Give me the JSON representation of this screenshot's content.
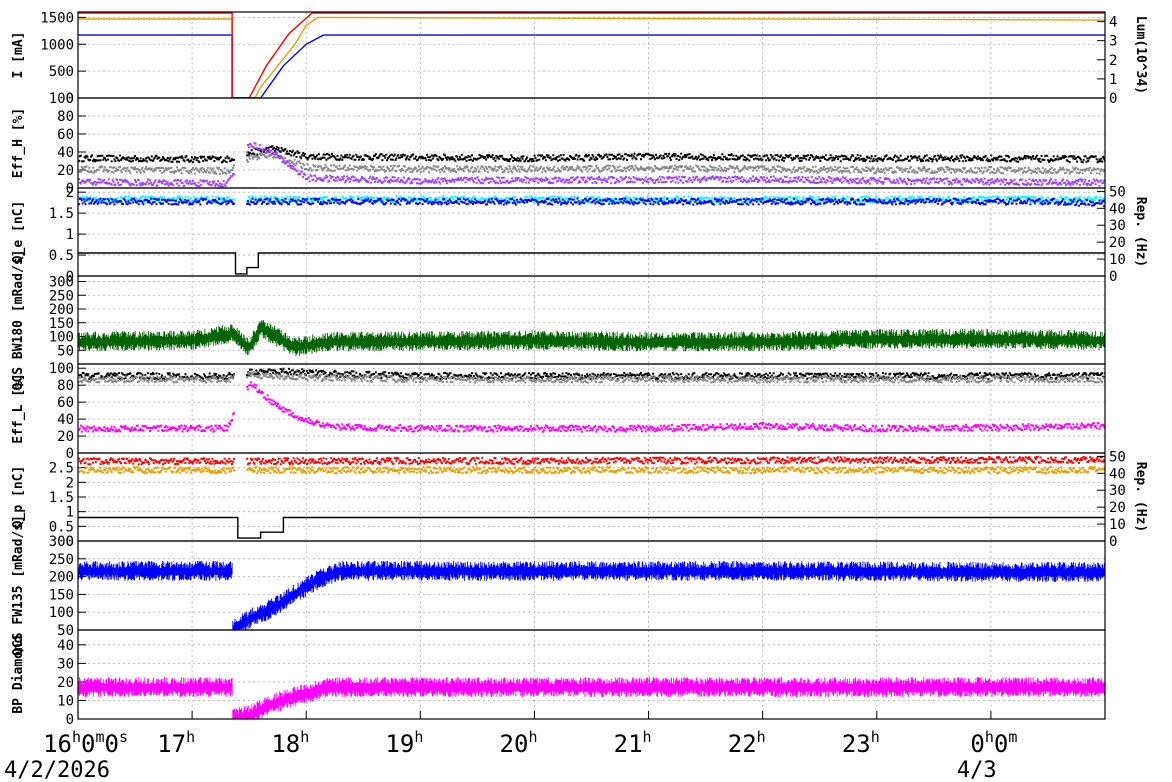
{
  "chart_data": {
    "type": "line",
    "x_range_hours": [
      16.0,
      25.0
    ],
    "x_ticks": [
      {
        "t": 16,
        "main": "16",
        "sup1": "h",
        "mid": "0",
        "sup2": "m",
        "tail": "0",
        "sup3": "s"
      },
      {
        "t": 17,
        "main": "17",
        "sup1": "h"
      },
      {
        "t": 18,
        "main": "18",
        "sup1": "h"
      },
      {
        "t": 19,
        "main": "19",
        "sup1": "h"
      },
      {
        "t": 20,
        "main": "20",
        "sup1": "h"
      },
      {
        "t": 21,
        "main": "21",
        "sup1": "h"
      },
      {
        "t": 22,
        "main": "22",
        "sup1": "h"
      },
      {
        "t": 23,
        "main": "23",
        "sup1": "h"
      },
      {
        "t": 24,
        "main": "0",
        "sup1": "h",
        "mid": "0",
        "sup2": "m"
      }
    ],
    "dates": [
      {
        "t": 16,
        "text": "4/2/2026"
      },
      {
        "t": 24,
        "text": "4/3"
      }
    ],
    "grid": true,
    "panels": [
      {
        "id": "current",
        "ylabel": "I [mA]",
        "ylim": [
          0,
          1600
        ],
        "yticks": [
          0,
          500,
          1000,
          1500
        ],
        "right_label": "Lum(10^34)",
        "right_ylim": [
          0,
          4.5
        ],
        "right_ticks": [
          0,
          1,
          2,
          3,
          4
        ],
        "series": [
          {
            "color": "#e8a000",
            "kind": "line",
            "points": [
              [
                16.0,
                1470
              ],
              [
                17.35,
                1470
              ],
              [
                17.35,
                0
              ],
              [
                17.55,
                0
              ],
              [
                17.6,
                200
              ],
              [
                17.75,
                600
              ],
              [
                17.9,
                1000
              ],
              [
                18.0,
                1350
              ],
              [
                18.1,
                1500
              ],
              [
                25.0,
                1450
              ]
            ]
          },
          {
            "color": "#0000ff",
            "kind": "line",
            "points": [
              [
                16.0,
                1170
              ],
              [
                17.35,
                1170
              ],
              [
                17.35,
                0
              ],
              [
                17.6,
                0
              ],
              [
                17.8,
                600
              ],
              [
                18.0,
                1000
              ],
              [
                18.15,
                1170
              ],
              [
                25.0,
                1170
              ]
            ]
          },
          {
            "color": "#ff0000",
            "kind": "line",
            "points": [
              [
                16.0,
                1580
              ],
              [
                17.35,
                1580
              ],
              [
                17.35,
                0
              ],
              [
                17.5,
                0
              ],
              [
                17.65,
                600
              ],
              [
                17.85,
                1200
              ],
              [
                18.05,
                1580
              ],
              [
                25.0,
                1580
              ]
            ]
          }
        ]
      },
      {
        "id": "effh",
        "ylabel": "Eff_H [%]",
        "ylim": [
          0,
          100
        ],
        "yticks": [
          0,
          20,
          40,
          60,
          80,
          100
        ],
        "series": [
          {
            "color": "#000000",
            "kind": "scatter",
            "points": [
              [
                16.0,
                34
              ],
              [
                17.3,
                33
              ],
              [
                17.5,
                40
              ],
              [
                17.7,
                45
              ],
              [
                18.0,
                36
              ],
              [
                19.0,
                35
              ],
              [
                20.0,
                34
              ],
              [
                21.0,
                36
              ],
              [
                22.0,
                35
              ],
              [
                23.0,
                34
              ],
              [
                24.0,
                34
              ],
              [
                25.0,
                33
              ]
            ]
          },
          {
            "color": "#888888",
            "kind": "scatter",
            "points": [
              [
                16.0,
                22
              ],
              [
                17.3,
                20
              ],
              [
                17.5,
                35
              ],
              [
                17.7,
                38
              ],
              [
                18.0,
                24
              ],
              [
                19.0,
                22
              ],
              [
                20.0,
                22
              ],
              [
                21.0,
                23
              ],
              [
                22.0,
                22
              ],
              [
                23.0,
                21
              ],
              [
                24.0,
                21
              ],
              [
                25.0,
                20
              ]
            ]
          },
          {
            "color": "#a040ff",
            "kind": "scatter",
            "points": [
              [
                16.0,
                8
              ],
              [
                17.3,
                6
              ],
              [
                17.5,
                50
              ],
              [
                17.7,
                40
              ],
              [
                18.0,
                12
              ],
              [
                19.0,
                9
              ],
              [
                20.0,
                10
              ],
              [
                21.0,
                10
              ],
              [
                22.0,
                11
              ],
              [
                23.0,
                9
              ],
              [
                24.0,
                8
              ],
              [
                25.0,
                7
              ]
            ]
          }
        ]
      },
      {
        "id": "qe",
        "ylabel": "Q_e [nC]",
        "ylim": [
          0,
          2.1
        ],
        "yticks": [
          0,
          0.5,
          1,
          1.5,
          2
        ],
        "right_label": "Rep. (Hz)",
        "right_ylim": [
          0,
          52
        ],
        "right_ticks": [
          0,
          10,
          20,
          30,
          40,
          50
        ],
        "series": [
          {
            "color": "#00ffff",
            "kind": "scatter",
            "points": [
              [
                16.0,
                1.85
              ],
              [
                17.3,
                1.85
              ],
              [
                17.45,
                1.85
              ],
              [
                25.0,
                1.85
              ]
            ]
          },
          {
            "color": "#0000ff",
            "kind": "scatter",
            "points": [
              [
                16.0,
                1.8
              ],
              [
                17.3,
                1.8
              ],
              [
                17.45,
                1.8
              ],
              [
                24.5,
                1.8
              ],
              [
                25.0,
                1.75
              ]
            ]
          },
          {
            "color": "#000000",
            "kind": "line",
            "points": [
              [
                16.0,
                0.55
              ],
              [
                17.38,
                0.55
              ],
              [
                17.38,
                0.05
              ],
              [
                17.48,
                0.05
              ],
              [
                17.48,
                0.2
              ],
              [
                17.58,
                0.2
              ],
              [
                17.58,
                0.55
              ],
              [
                25.0,
                0.55
              ]
            ]
          }
        ]
      },
      {
        "id": "bw180",
        "ylabel": "QCS BW180 [mRad/s]",
        "ylim": [
          0,
          320
        ],
        "yticks": [
          50,
          100,
          150,
          200,
          250,
          300
        ],
        "series": [
          {
            "color": "#006400",
            "kind": "noise",
            "points": [
              [
                16.0,
                80
              ],
              [
                17.0,
                85
              ],
              [
                17.35,
                110
              ],
              [
                17.5,
                60
              ],
              [
                17.6,
                130
              ],
              [
                17.9,
                60
              ],
              [
                18.2,
                80
              ],
              [
                20.0,
                85
              ],
              [
                21.0,
                80
              ],
              [
                22.0,
                80
              ],
              [
                23.0,
                90
              ],
              [
                24.0,
                90
              ],
              [
                25.0,
                85
              ]
            ]
          }
        ]
      },
      {
        "id": "effl",
        "ylabel": "Eff_L [%]",
        "ylim": [
          0,
          105
        ],
        "yticks": [
          0,
          20,
          40,
          60,
          80,
          100
        ],
        "series": [
          {
            "color": "#000000",
            "kind": "scatter",
            "points": [
              [
                16.0,
                92
              ],
              [
                17.3,
                92
              ],
              [
                17.5,
                96
              ],
              [
                17.8,
                98
              ],
              [
                18.1,
                95
              ],
              [
                19.0,
                92
              ],
              [
                21.0,
                92
              ],
              [
                23.0,
                92
              ],
              [
                25.0,
                92
              ]
            ]
          },
          {
            "color": "#888888",
            "kind": "scatter",
            "points": [
              [
                16.0,
                88
              ],
              [
                17.3,
                88
              ],
              [
                17.5,
                93
              ],
              [
                18.0,
                90
              ],
              [
                19.0,
                88
              ],
              [
                21.0,
                88
              ],
              [
                23.0,
                88
              ],
              [
                25.0,
                88
              ]
            ]
          },
          {
            "color": "#ff00ff",
            "kind": "scatter",
            "points": [
              [
                16.0,
                30
              ],
              [
                17.3,
                30
              ],
              [
                17.5,
                85
              ],
              [
                17.7,
                60
              ],
              [
                17.9,
                45
              ],
              [
                18.2,
                32
              ],
              [
                19.0,
                30
              ],
              [
                20.0,
                30
              ],
              [
                21.0,
                30
              ],
              [
                22.0,
                33
              ],
              [
                23.0,
                30
              ],
              [
                24.0,
                31
              ],
              [
                25.0,
                33
              ]
            ]
          }
        ]
      },
      {
        "id": "qp",
        "ylabel": "Q_p [nC]",
        "ylim": [
          0,
          3.0
        ],
        "yticks": [
          0,
          0.5,
          1,
          1.5,
          2,
          2.5
        ],
        "right_label": "Rep. (Hz)",
        "right_ylim": [
          0,
          52
        ],
        "right_ticks": [
          0,
          10,
          20,
          30,
          40,
          50
        ],
        "series": [
          {
            "color": "#ff0000",
            "kind": "scatter",
            "points": [
              [
                16.0,
                2.75
              ],
              [
                17.35,
                2.75
              ],
              [
                17.45,
                2.75
              ],
              [
                25.0,
                2.8
              ]
            ]
          },
          {
            "color": "#e8a000",
            "kind": "scatter",
            "points": [
              [
                16.0,
                2.45
              ],
              [
                17.35,
                2.45
              ],
              [
                17.45,
                2.45
              ],
              [
                25.0,
                2.45
              ]
            ]
          },
          {
            "color": "#000000",
            "kind": "line",
            "points": [
              [
                16.0,
                0.8
              ],
              [
                17.4,
                0.8
              ],
              [
                17.4,
                0.1
              ],
              [
                17.6,
                0.1
              ],
              [
                17.6,
                0.3
              ],
              [
                17.8,
                0.3
              ],
              [
                17.8,
                0.8
              ],
              [
                25.0,
                0.8
              ]
            ]
          }
        ]
      },
      {
        "id": "fw135",
        "ylabel": "QCS FW135 [mRad/s]",
        "ylim": [
          50,
          300
        ],
        "yticks": [
          50,
          100,
          150,
          200,
          250,
          300
        ],
        "series": [
          {
            "color": "#0000ff",
            "kind": "noise",
            "points": [
              [
                16.0,
                215
              ],
              [
                17.35,
                215
              ],
              [
                17.35,
                50
              ],
              [
                17.5,
                80
              ],
              [
                17.7,
                110
              ],
              [
                17.9,
                150
              ],
              [
                18.1,
                190
              ],
              [
                18.3,
                215
              ],
              [
                20.0,
                215
              ],
              [
                22.0,
                215
              ],
              [
                24.0,
                212
              ],
              [
                25.0,
                212
              ]
            ]
          }
        ]
      },
      {
        "id": "diamond",
        "ylabel": "BP Diamond",
        "ylim": [
          0,
          48
        ],
        "yticks": [
          0,
          10,
          20,
          30,
          40
        ],
        "series": [
          {
            "color": "#ff00ff",
            "kind": "noise",
            "points": [
              [
                16.0,
                17
              ],
              [
                17.35,
                17
              ],
              [
                17.35,
                0
              ],
              [
                17.5,
                2
              ],
              [
                17.7,
                8
              ],
              [
                17.9,
                12
              ],
              [
                18.2,
                17
              ],
              [
                20.0,
                17
              ],
              [
                22.0,
                17
              ],
              [
                24.0,
                17
              ],
              [
                25.0,
                17
              ]
            ]
          }
        ]
      }
    ]
  }
}
